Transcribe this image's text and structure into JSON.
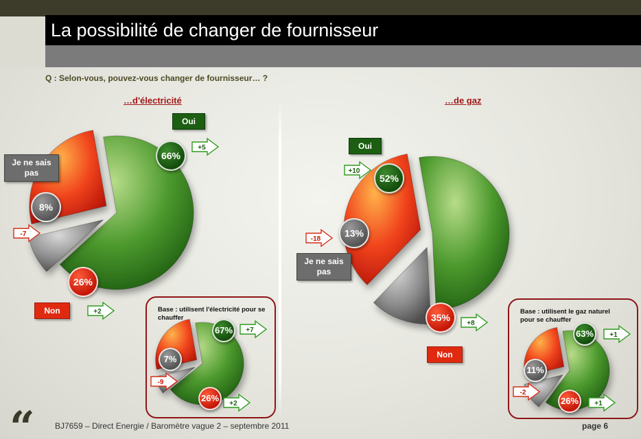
{
  "page": {
    "title": "La possibilité de changer de fournisseur",
    "question": "Q : Selon-vous, pouvez-vous changer de fournisseur… ?",
    "footer": "BJ7659 – Direct Energie / Baromètre vague 2 – septembre 2011",
    "page_number": "page 6"
  },
  "legend": {
    "oui": "Oui",
    "non": "Non",
    "jns": "Je ne sais pas"
  },
  "colors": {
    "oui": "#2e7d1e",
    "non": "#f0431c",
    "jns": "#8c8c8c",
    "inset_border": "#8e1515"
  },
  "chart_data": [
    {
      "type": "pie",
      "title": "…d'électricité",
      "categories": [
        "Oui",
        "Je ne sais pas",
        "Non"
      ],
      "values": [
        66,
        8,
        26
      ],
      "value_labels": [
        "66%",
        "8%",
        "26%"
      ],
      "evolution_labels": [
        "+5",
        "-7",
        "+2"
      ],
      "unit": "%"
    },
    {
      "type": "pie",
      "title": "…de gaz",
      "categories": [
        "Oui",
        "Je ne sais pas",
        "Non"
      ],
      "values": [
        52,
        13,
        35
      ],
      "value_labels": [
        "52%",
        "13%",
        "35%"
      ],
      "evolution_labels": [
        "+10",
        "-18",
        "+8"
      ],
      "unit": "%"
    },
    {
      "type": "pie",
      "title": "Base : utilisent l'électricité pour se chauffer",
      "categories": [
        "Oui",
        "Je ne sais pas",
        "Non"
      ],
      "values": [
        67,
        7,
        26
      ],
      "value_labels": [
        "67%",
        "7%",
        "26%"
      ],
      "evolution_labels": [
        "+7",
        "-9",
        "+2"
      ],
      "unit": "%"
    },
    {
      "type": "pie",
      "title": "Base : utilisent le gaz naturel pour se chauffer",
      "categories": [
        "Oui",
        "Je ne sais pas",
        "Non"
      ],
      "values": [
        63,
        11,
        26
      ],
      "value_labels": [
        "63%",
        "11%",
        "26%"
      ],
      "evolution_labels": [
        "+1",
        "-2",
        "+1"
      ],
      "unit": "%"
    }
  ]
}
